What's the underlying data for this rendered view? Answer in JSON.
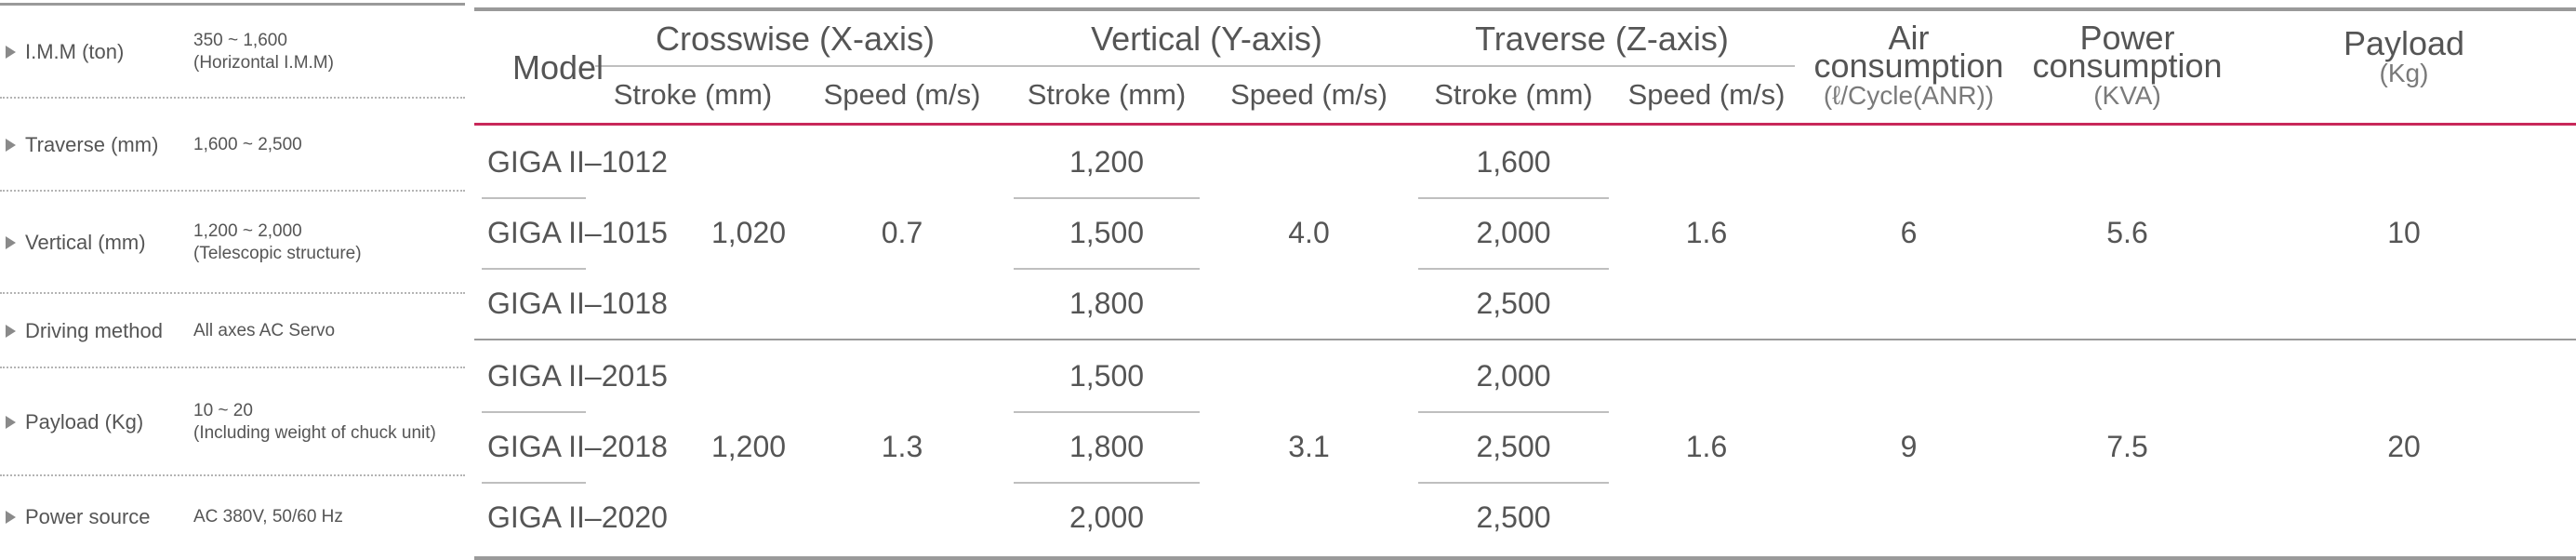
{
  "specs": [
    {
      "label": "I.M.M (ton)",
      "value_lines": [
        "350 ~ 1,600",
        "(Horizontal I.M.M)"
      ]
    },
    {
      "label": "Traverse (mm)",
      "value_lines": [
        "1,600 ~ 2,500"
      ]
    },
    {
      "label": "Vertical (mm)",
      "value_lines": [
        "1,200 ~ 2,000",
        "(Telescopic structure)"
      ]
    },
    {
      "label": "Driving method",
      "value_lines": [
        "All axes AC Servo"
      ]
    },
    {
      "label": "Payload (Kg)",
      "value_lines": [
        "10 ~ 20",
        "(Including weight of chuck unit)"
      ]
    },
    {
      "label": "Power source",
      "value_lines": [
        "AC 380V, 50/60 Hz"
      ]
    }
  ],
  "table": {
    "header": {
      "model": "Model",
      "crosswise": "Crosswise (X-axis)",
      "vertical": "Vertical (Y-axis)",
      "traverse": "Traverse (Z-axis)",
      "stroke": "Stroke (mm)",
      "speed": "Speed (m/s)",
      "air": {
        "title_lines": [
          "Air",
          "consumption"
        ],
        "unit": "(ℓ/Cycle(ANR))"
      },
      "power": {
        "title_lines": [
          "Power",
          "consumption"
        ],
        "unit": "(KVA)"
      },
      "payload": {
        "title": "Payload",
        "unit": "(Kg)"
      }
    },
    "groups": [
      {
        "models": [
          "GIGA II–1012",
          "GIGA II–1015",
          "GIGA II–1018"
        ],
        "x_stroke": "1,020",
        "x_speed": "0.7",
        "y_strokes": [
          "1,200",
          "1,500",
          "1,800"
        ],
        "y_speed": "4.0",
        "z_strokes": [
          "1,600",
          "2,000",
          "2,500"
        ],
        "z_speed": "1.6",
        "air": "6",
        "power": "5.6",
        "payload": "10"
      },
      {
        "models": [
          "GIGA II–2015",
          "GIGA II–2018",
          "GIGA II–2020"
        ],
        "x_stroke": "1,200",
        "x_speed": "1.3",
        "y_strokes": [
          "1,500",
          "1,800",
          "2,000"
        ],
        "y_speed": "3.1",
        "z_strokes": [
          "2,000",
          "2,500",
          "2,500"
        ],
        "z_speed": "1.6",
        "air": "9",
        "power": "7.5",
        "payload": "20"
      }
    ]
  },
  "colors": {
    "accent": "#c8285a",
    "rule": "#9a9a9a",
    "divider": "#bfbfbf",
    "text": "#555555"
  }
}
